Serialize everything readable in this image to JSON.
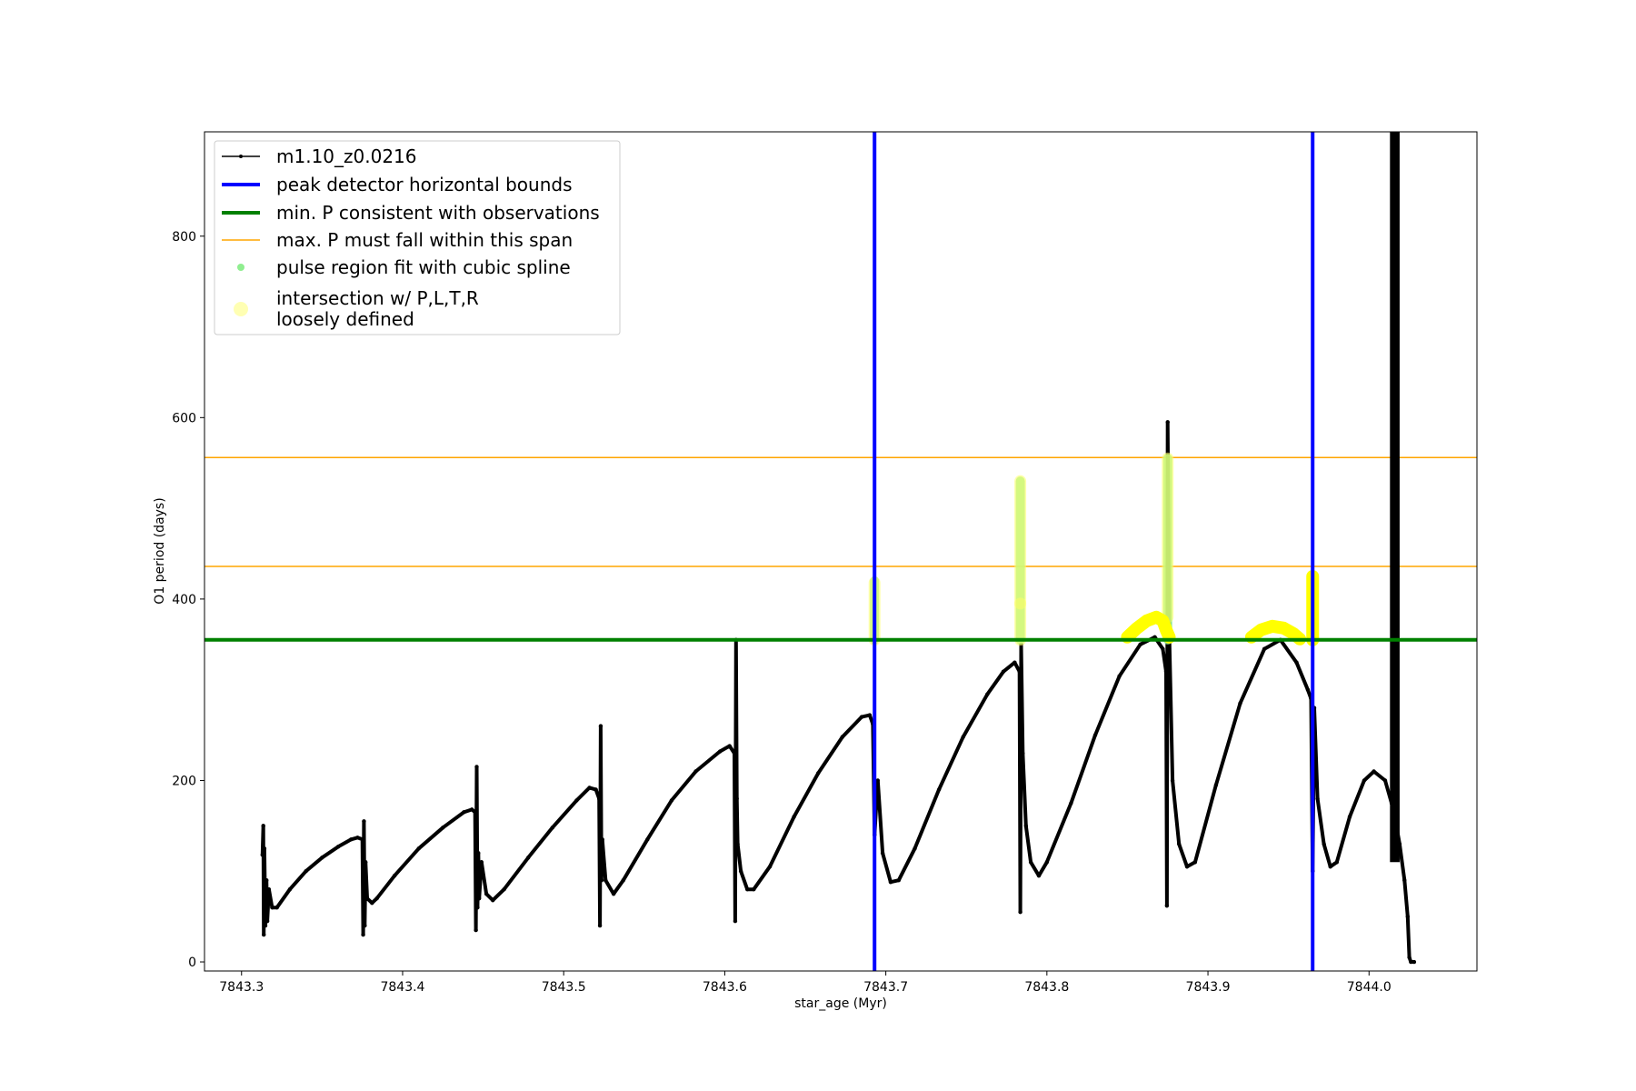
{
  "chart_data": {
    "type": "line",
    "xlabel": "star_age (Myr)",
    "ylabel": "O1 period (days)",
    "xlim": [
      7843.277,
      7844.067
    ],
    "ylim": [
      -10,
      915
    ],
    "xticks": [
      {
        "value": 7843.3,
        "label": "7843.3"
      },
      {
        "value": 7843.4,
        "label": "7843.4"
      },
      {
        "value": 7843.5,
        "label": "7843.5"
      },
      {
        "value": 7843.6,
        "label": "7843.6"
      },
      {
        "value": 7843.7,
        "label": "7843.7"
      },
      {
        "value": 7843.8,
        "label": "7843.8"
      },
      {
        "value": 7843.9,
        "label": "7843.9"
      },
      {
        "value": 7844.0,
        "label": "7844.0"
      }
    ],
    "yticks": [
      {
        "value": 0,
        "label": "0"
      },
      {
        "value": 200,
        "label": "200"
      },
      {
        "value": 400,
        "label": "400"
      },
      {
        "value": 600,
        "label": "600"
      },
      {
        "value": 800,
        "label": "800"
      }
    ],
    "grid": false,
    "legend_position": "top-left",
    "legend": [
      {
        "label": "m1.10_z0.0216",
        "style": "line-marker",
        "color": "#000000"
      },
      {
        "label": "peak detector horizontal bounds",
        "style": "thick-line",
        "color": "#0000ff"
      },
      {
        "label": "min. P consistent with observations",
        "style": "thick-line",
        "color": "#008000"
      },
      {
        "label": "max. P must fall within this span",
        "style": "thin-line",
        "color": "#ffa500"
      },
      {
        "label": "pulse region fit with cubic spline",
        "style": "dot",
        "color": "#90ee90"
      },
      {
        "label": "intersection w/ P,L,T,R",
        "label2": "loosely defined",
        "style": "big-dot",
        "color": "#ffffb3"
      }
    ],
    "vertical_lines": {
      "color": "#0000ff",
      "x": [
        7843.693,
        7843.965
      ]
    },
    "hlines_min": {
      "color": "#008000",
      "y": [
        355
      ]
    },
    "hlines_max": {
      "color": "#ffa500",
      "y": [
        556,
        436
      ]
    },
    "series": [
      {
        "name": "m1.10_z0.0216",
        "color": "#000000",
        "points": [
          [
            7843.313,
            118
          ],
          [
            7843.3135,
            150
          ],
          [
            7843.3138,
            30
          ],
          [
            7843.3142,
            125
          ],
          [
            7843.3148,
            40
          ],
          [
            7843.3155,
            90
          ],
          [
            7843.316,
            45
          ],
          [
            7843.317,
            80
          ],
          [
            7843.319,
            60
          ],
          [
            7843.322,
            60
          ],
          [
            7843.33,
            80
          ],
          [
            7843.34,
            100
          ],
          [
            7843.35,
            115
          ],
          [
            7843.36,
            127
          ],
          [
            7843.368,
            135
          ],
          [
            7843.372,
            137
          ],
          [
            7843.375,
            135
          ],
          [
            7843.3755,
            30
          ],
          [
            7843.376,
            155
          ],
          [
            7843.3765,
            40
          ],
          [
            7843.377,
            110
          ],
          [
            7843.378,
            70
          ],
          [
            7843.381,
            65
          ],
          [
            7843.384,
            70
          ],
          [
            7843.395,
            95
          ],
          [
            7843.41,
            125
          ],
          [
            7843.425,
            148
          ],
          [
            7843.438,
            165
          ],
          [
            7843.443,
            168
          ],
          [
            7843.445,
            165
          ],
          [
            7843.4455,
            35
          ],
          [
            7843.446,
            215
          ],
          [
            7843.4465,
            60
          ],
          [
            7843.447,
            120
          ],
          [
            7843.4475,
            70
          ],
          [
            7843.449,
            110
          ],
          [
            7843.452,
            75
          ],
          [
            7843.456,
            68
          ],
          [
            7843.463,
            80
          ],
          [
            7843.478,
            115
          ],
          [
            7843.493,
            148
          ],
          [
            7843.508,
            178
          ],
          [
            7843.516,
            192
          ],
          [
            7843.52,
            190
          ],
          [
            7843.522,
            180
          ],
          [
            7843.5225,
            40
          ],
          [
            7843.523,
            260
          ],
          [
            7843.5235,
            90
          ],
          [
            7843.524,
            135
          ],
          [
            7843.526,
            90
          ],
          [
            7843.531,
            75
          ],
          [
            7843.537,
            90
          ],
          [
            7843.552,
            135
          ],
          [
            7843.567,
            178
          ],
          [
            7843.582,
            210
          ],
          [
            7843.597,
            232
          ],
          [
            7843.603,
            238
          ],
          [
            7843.606,
            230
          ],
          [
            7843.6065,
            45
          ],
          [
            7843.607,
            355
          ],
          [
            7843.6075,
            180
          ],
          [
            7843.608,
            130
          ],
          [
            7843.61,
            100
          ],
          [
            7843.614,
            80
          ],
          [
            7843.618,
            80
          ],
          [
            7843.628,
            105
          ],
          [
            7843.643,
            160
          ],
          [
            7843.658,
            208
          ],
          [
            7843.673,
            248
          ],
          [
            7843.685,
            270
          ],
          [
            7843.69,
            272
          ],
          [
            7843.692,
            262
          ],
          [
            7843.693,
            140
          ],
          [
            7843.695,
            200
          ],
          [
            7843.698,
            120
          ],
          [
            7843.703,
            88
          ],
          [
            7843.708,
            90
          ],
          [
            7843.718,
            125
          ],
          [
            7843.733,
            190
          ],
          [
            7843.748,
            248
          ],
          [
            7843.763,
            295
          ],
          [
            7843.773,
            320
          ],
          [
            7843.78,
            330
          ],
          [
            7843.783,
            320
          ],
          [
            7843.7835,
            55
          ],
          [
            7843.784,
            350
          ],
          [
            7843.785,
            230
          ],
          [
            7843.787,
            150
          ],
          [
            7843.79,
            110
          ],
          [
            7843.795,
            95
          ],
          [
            7843.8,
            110
          ],
          [
            7843.815,
            175
          ],
          [
            7843.83,
            250
          ],
          [
            7843.845,
            315
          ],
          [
            7843.858,
            350
          ],
          [
            7843.867,
            358
          ],
          [
            7843.872,
            345
          ],
          [
            7843.874,
            320
          ],
          [
            7843.8745,
            62
          ],
          [
            7843.875,
            595
          ],
          [
            7843.876,
            360
          ],
          [
            7843.878,
            200
          ],
          [
            7843.882,
            130
          ],
          [
            7843.887,
            105
          ],
          [
            7843.892,
            110
          ],
          [
            7843.905,
            195
          ],
          [
            7843.92,
            285
          ],
          [
            7843.935,
            345
          ],
          [
            7843.945,
            355
          ],
          [
            7843.955,
            330
          ],
          [
            7843.962,
            300
          ],
          [
            7843.964,
            290
          ],
          [
            7843.965,
            100
          ],
          [
            7843.966,
            280
          ],
          [
            7843.968,
            180
          ],
          [
            7843.972,
            130
          ],
          [
            7843.976,
            105
          ],
          [
            7843.98,
            110
          ],
          [
            7843.988,
            160
          ],
          [
            7843.997,
            200
          ],
          [
            7844.003,
            210
          ],
          [
            7844.01,
            200
          ],
          [
            7844.014,
            175
          ],
          [
            7844.016,
            160
          ],
          [
            7844.019,
            130
          ],
          [
            7844.022,
            90
          ],
          [
            7844.024,
            50
          ],
          [
            7844.025,
            5
          ],
          [
            7844.026,
            0
          ],
          [
            7844.028,
            0
          ]
        ]
      }
    ],
    "dense_band": {
      "color": "#000000",
      "x_from": 7844.013,
      "x_to": 7844.019,
      "y_from": 110,
      "y_to": 915
    },
    "green_fit_regions": [
      {
        "x": 7843.693,
        "y_from": 355,
        "y_to": 420
      },
      {
        "x": 7843.7835,
        "y_from": 355,
        "y_to": 530
      },
      {
        "x": 7843.875,
        "y_from": 355,
        "y_to": 555
      }
    ],
    "yellow_intersections": [
      {
        "x": 7843.693,
        "y_from": 355,
        "y_to": 418
      },
      {
        "x": 7843.7835,
        "y_from": 395,
        "y_to": 530
      },
      {
        "x": 7843.7835,
        "y_from": 355,
        "y_to": 395
      },
      {
        "x": 7843.875,
        "y_from": 380,
        "y_to": 555
      },
      {
        "x": 7843.965,
        "y_from": 355,
        "y_to": 425
      }
    ],
    "yellow_arcs": [
      {
        "points": [
          [
            7843.85,
            358
          ],
          [
            7843.856,
            368
          ],
          [
            7843.862,
            376
          ],
          [
            7843.868,
            380
          ],
          [
            7843.872,
            376
          ],
          [
            7843.874,
            366
          ],
          [
            7843.876,
            358
          ]
        ]
      },
      {
        "points": [
          [
            7843.927,
            358
          ],
          [
            7843.933,
            366
          ],
          [
            7843.94,
            370
          ],
          [
            7843.947,
            368
          ],
          [
            7843.953,
            362
          ],
          [
            7843.957,
            356
          ]
        ]
      }
    ]
  }
}
